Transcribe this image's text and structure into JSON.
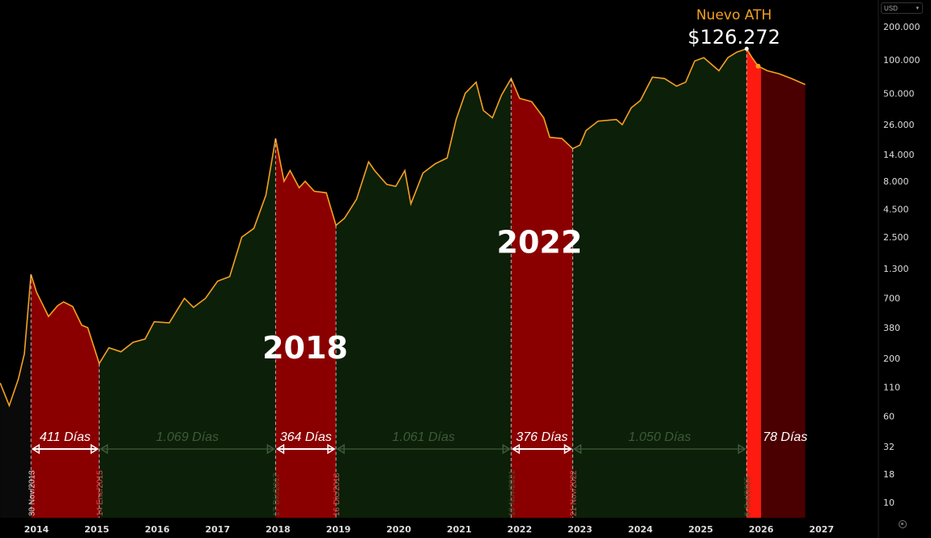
{
  "chart_data": {
    "type": "area",
    "title": "",
    "xlabel": "",
    "ylabel": "",
    "y_scale": "log",
    "ylim": [
      8,
      230000
    ],
    "xlim": [
      2013.4,
      2027.5
    ],
    "grid": false,
    "currency_selector": "USD",
    "y_ticks": [
      {
        "value": 200000,
        "label": "200.000"
      },
      {
        "value": 100000,
        "label": "100.000"
      },
      {
        "value": 50000,
        "label": "50.000"
      },
      {
        "value": 26000,
        "label": "26.000"
      },
      {
        "value": 14000,
        "label": "14.000"
      },
      {
        "value": 8000,
        "label": "8.000"
      },
      {
        "value": 4500,
        "label": "4.500"
      },
      {
        "value": 2500,
        "label": "2.500"
      },
      {
        "value": 1300,
        "label": "1.300"
      },
      {
        "value": 700,
        "label": "700"
      },
      {
        "value": 380,
        "label": "380"
      },
      {
        "value": 200,
        "label": "200"
      },
      {
        "value": 110,
        "label": "110"
      },
      {
        "value": 60,
        "label": "60"
      },
      {
        "value": 32,
        "label": "32"
      },
      {
        "value": 18,
        "label": "18"
      },
      {
        "value": 10,
        "label": "10"
      }
    ],
    "x_ticks": [
      "2014",
      "2015",
      "2016",
      "2017",
      "2018",
      "2019",
      "2020",
      "2021",
      "2022",
      "2023",
      "2024",
      "2025",
      "2026",
      "2027"
    ],
    "series": [
      {
        "color": "#f5a020",
        "points": [
          [
            2013.4,
            120
          ],
          [
            2013.55,
            75
          ],
          [
            2013.7,
            130
          ],
          [
            2013.8,
            220
          ],
          [
            2013.91,
            1150
          ],
          [
            2014.0,
            800
          ],
          [
            2014.1,
            620
          ],
          [
            2014.2,
            480
          ],
          [
            2014.35,
            600
          ],
          [
            2014.45,
            650
          ],
          [
            2014.6,
            590
          ],
          [
            2014.75,
            400
          ],
          [
            2014.85,
            380
          ],
          [
            2015.04,
            180
          ],
          [
            2015.2,
            250
          ],
          [
            2015.4,
            230
          ],
          [
            2015.6,
            280
          ],
          [
            2015.8,
            300
          ],
          [
            2015.95,
            430
          ],
          [
            2016.2,
            420
          ],
          [
            2016.45,
            700
          ],
          [
            2016.6,
            580
          ],
          [
            2016.8,
            700
          ],
          [
            2017.0,
            1000
          ],
          [
            2017.2,
            1100
          ],
          [
            2017.4,
            2500
          ],
          [
            2017.6,
            3000
          ],
          [
            2017.8,
            6000
          ],
          [
            2017.96,
            19500
          ],
          [
            2018.1,
            8000
          ],
          [
            2018.2,
            10000
          ],
          [
            2018.35,
            7000
          ],
          [
            2018.45,
            8000
          ],
          [
            2018.6,
            6500
          ],
          [
            2018.8,
            6300
          ],
          [
            2018.96,
            3200
          ],
          [
            2019.1,
            3700
          ],
          [
            2019.3,
            5500
          ],
          [
            2019.5,
            12000
          ],
          [
            2019.6,
            10000
          ],
          [
            2019.8,
            7500
          ],
          [
            2019.95,
            7200
          ],
          [
            2020.1,
            10000
          ],
          [
            2020.2,
            5000
          ],
          [
            2020.4,
            9500
          ],
          [
            2020.6,
            11500
          ],
          [
            2020.8,
            13000
          ],
          [
            2020.95,
            29000
          ],
          [
            2021.1,
            50000
          ],
          [
            2021.28,
            63000
          ],
          [
            2021.4,
            35000
          ],
          [
            2021.55,
            30000
          ],
          [
            2021.7,
            48000
          ],
          [
            2021.86,
            68000
          ],
          [
            2022.0,
            45000
          ],
          [
            2022.2,
            42000
          ],
          [
            2022.4,
            30000
          ],
          [
            2022.5,
            20000
          ],
          [
            2022.7,
            19500
          ],
          [
            2022.88,
            15800
          ],
          [
            2023.0,
            17000
          ],
          [
            2023.1,
            23000
          ],
          [
            2023.3,
            28000
          ],
          [
            2023.6,
            29000
          ],
          [
            2023.7,
            26000
          ],
          [
            2023.85,
            37000
          ],
          [
            2024.0,
            43000
          ],
          [
            2024.2,
            70000
          ],
          [
            2024.4,
            68000
          ],
          [
            2024.6,
            58000
          ],
          [
            2024.75,
            63000
          ],
          [
            2024.9,
            98000
          ],
          [
            2025.05,
            105000
          ],
          [
            2025.3,
            80000
          ],
          [
            2025.45,
            105000
          ],
          [
            2025.6,
            118000
          ],
          [
            2025.76,
            126272
          ],
          [
            2025.85,
            105000
          ],
          [
            2025.95,
            88000
          ],
          [
            2026.1,
            80000
          ],
          [
            2026.3,
            75000
          ],
          [
            2026.5,
            68000
          ],
          [
            2026.73,
            60000
          ]
        ]
      }
    ],
    "bands": [
      {
        "from": 2013.91,
        "to": 2015.04,
        "color": "#8a0000",
        "kind": "bear"
      },
      {
        "from": 2015.04,
        "to": 2017.96,
        "color": "#0c1f08",
        "kind": "bull"
      },
      {
        "from": 2017.96,
        "to": 2018.96,
        "color": "#8a0000",
        "kind": "bear"
      },
      {
        "from": 2018.96,
        "to": 2021.86,
        "color": "#0c1f08",
        "kind": "bull"
      },
      {
        "from": 2021.86,
        "to": 2022.88,
        "color": "#8a0000",
        "kind": "bear"
      },
      {
        "from": 2022.88,
        "to": 2025.76,
        "color": "#0c1f08",
        "kind": "bull"
      },
      {
        "from": 2025.76,
        "to": 2026.0,
        "color": "#ff1a10",
        "kind": "current"
      },
      {
        "from": 2026.0,
        "to": 2026.73,
        "color": "#4a0000",
        "kind": "bear"
      }
    ],
    "durations": [
      {
        "from": 2013.91,
        "to": 2015.04,
        "label": "411 Días",
        "style": "white"
      },
      {
        "from": 2015.04,
        "to": 2017.96,
        "label": "1.069 Días",
        "style": "gray"
      },
      {
        "from": 2017.96,
        "to": 2018.96,
        "label": "364 Días",
        "style": "white"
      },
      {
        "from": 2018.96,
        "to": 2021.86,
        "label": "1.061 Días",
        "style": "gray"
      },
      {
        "from": 2021.86,
        "to": 2022.88,
        "label": "376 Días",
        "style": "white"
      },
      {
        "from": 2022.88,
        "to": 2025.76,
        "label": "1.050 Días",
        "style": "gray"
      },
      {
        "from": 2026.0,
        "to": 2026.73,
        "label": "78 Días",
        "style": "white-noarrow"
      }
    ],
    "date_markers": [
      {
        "at": 2013.91,
        "label": "30 Nov/2013",
        "color": "#dddddd"
      },
      {
        "at": 2015.04,
        "label": "14 Ene/2015",
        "color": "#e05050"
      },
      {
        "at": 2017.96,
        "label": "17 Dic/2017",
        "color": "#3a5a36"
      },
      {
        "at": 2018.96,
        "label": "16 Dic/2018",
        "color": "#e05050"
      },
      {
        "at": 2021.86,
        "label": "10 Nov/2021",
        "color": "#3a5a36"
      },
      {
        "at": 2022.88,
        "label": "21 Nov/2022",
        "color": "#e05050"
      },
      {
        "at": 2025.76,
        "label": "6 Oct/2025",
        "color": "#3a5a36"
      }
    ],
    "annotations": [
      {
        "text": "2018",
        "x": 2018.45,
        "y": 200,
        "size": "big"
      },
      {
        "text": "2022",
        "x": 2022.33,
        "y": 1800,
        "size": "big"
      },
      {
        "text": "Nuevo ATH",
        "x": 2025.55,
        "y": 190000,
        "size": "ath-title",
        "color": "#f5a020"
      },
      {
        "text": "$126.272",
        "x": 2025.55,
        "y": 145000,
        "size": "ath-value",
        "color": "#ffffff"
      }
    ]
  }
}
